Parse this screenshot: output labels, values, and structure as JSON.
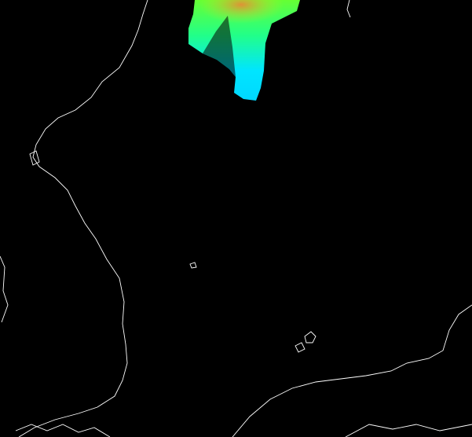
{
  "map": {
    "background_color": "#000000",
    "coastline_color": "#ffffff",
    "overlay_gradient": [
      "#00e5ff",
      "#33ff66",
      "#ccee22",
      "#ff6633"
    ]
  }
}
